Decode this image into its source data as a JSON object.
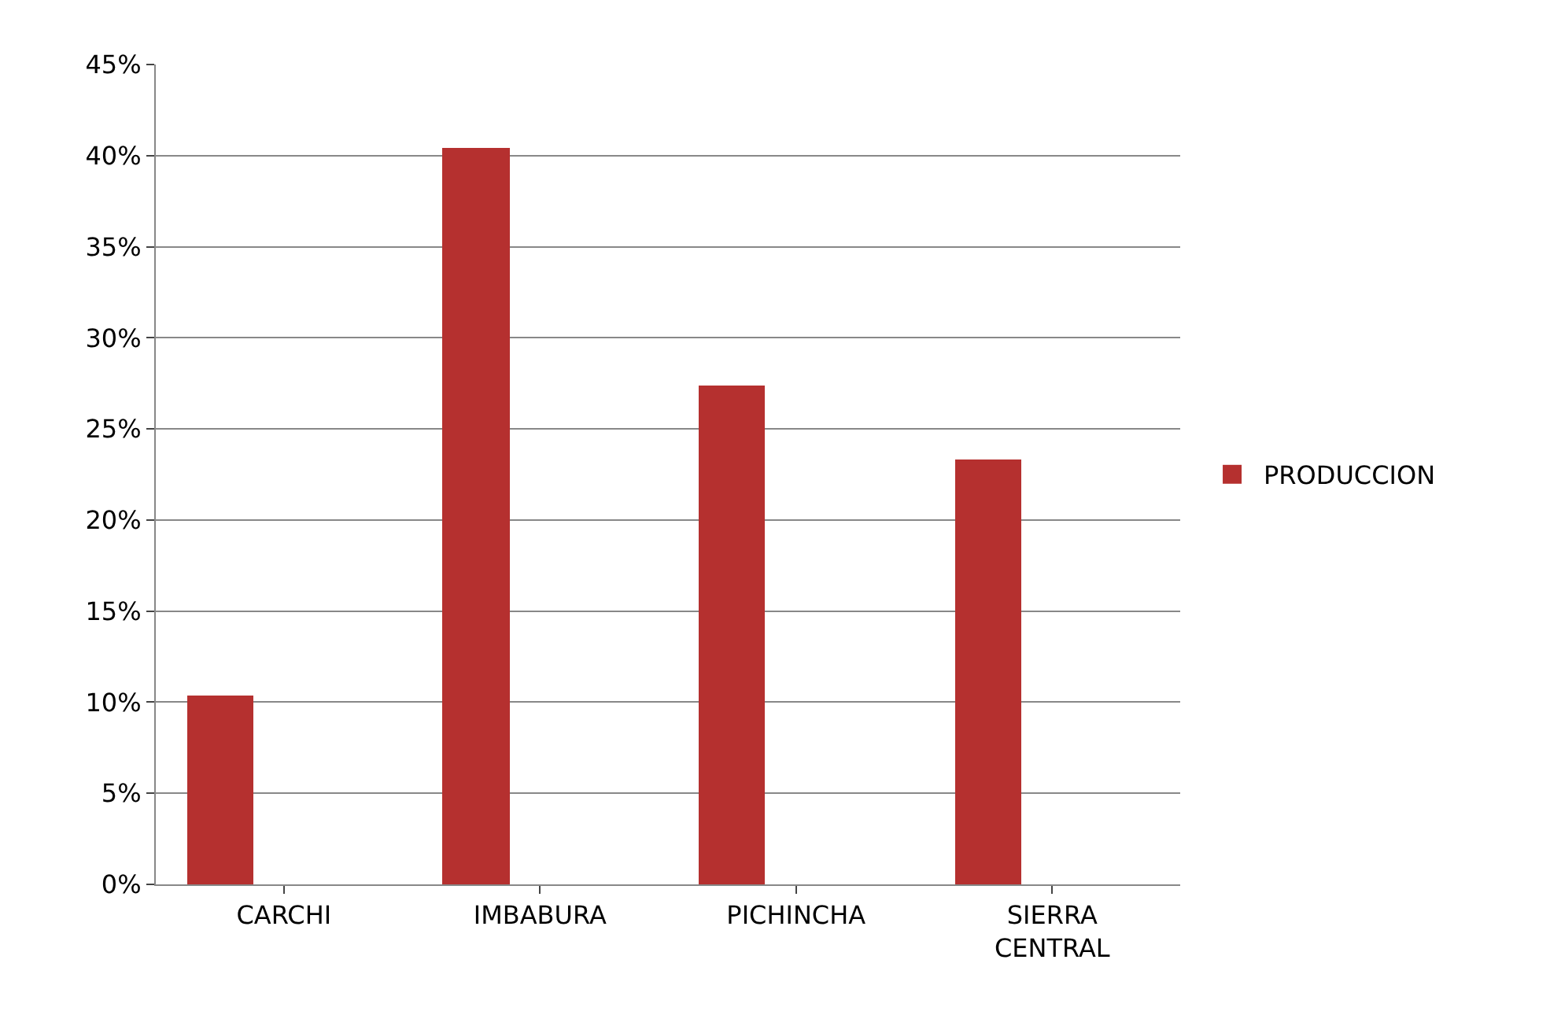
{
  "chart_data": {
    "type": "bar",
    "categories": [
      "CARCHI",
      "IMBABURA",
      "PICHINCHA",
      "SIERRA CENTRAL"
    ],
    "series": [
      {
        "name": "PRODUCCION",
        "color": "#b5302f",
        "values": [
          10.4,
          40.4,
          27.4,
          23.3
        ]
      }
    ],
    "ylim": [
      0,
      45
    ],
    "yticks": [
      {
        "value": 0,
        "label": "0%"
      },
      {
        "value": 5,
        "label": "5%"
      },
      {
        "value": 10,
        "label": "10%"
      },
      {
        "value": 15,
        "label": "15%"
      },
      {
        "value": 20,
        "label": "20%"
      },
      {
        "value": 25,
        "label": "25%"
      },
      {
        "value": 30,
        "label": "30%"
      },
      {
        "value": 35,
        "label": "35%"
      },
      {
        "value": 40,
        "label": "40%"
      },
      {
        "value": 45,
        "label": "45%"
      }
    ],
    "grid": "y",
    "legend": "right"
  }
}
